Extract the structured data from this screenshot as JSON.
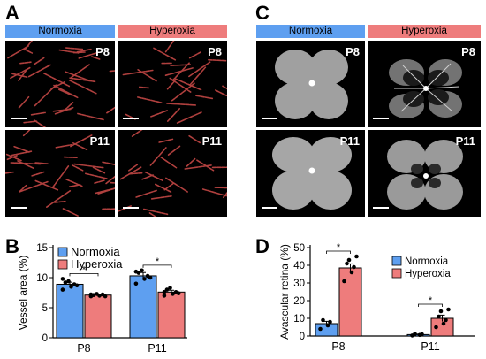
{
  "panels": {
    "A": {
      "label": "A",
      "normoxia": "Normoxia",
      "hyperoxia": "Hyperoxia",
      "ages": [
        "P8",
        "P8",
        "P11",
        "P11"
      ]
    },
    "C": {
      "label": "C",
      "normoxia": "Normoxia",
      "hyperoxia": "Hyperoxia",
      "ages": [
        "P8",
        "P8",
        "P11",
        "P11"
      ]
    },
    "B": {
      "label": "B",
      "ylabel": "Vessel area (%)",
      "categories": [
        "P8",
        "P11"
      ],
      "sig": [
        "*",
        "*"
      ]
    },
    "D": {
      "label": "D",
      "ylabel": "Avascular retina (%)",
      "categories": [
        "P8",
        "P11"
      ],
      "sig": [
        "*",
        "*"
      ]
    }
  },
  "colors": {
    "normoxia": "#5e9ff0",
    "hyperoxia": "#ee7c7c",
    "vessel": "#b0403e"
  },
  "chart_data": [
    {
      "type": "bar",
      "ylabel": "Vessel area (%)",
      "categories": [
        "P8",
        "P11"
      ],
      "ylim": [
        0,
        15
      ],
      "yticks": [
        0,
        5,
        10,
        15
      ],
      "legend": "top-left",
      "series": [
        {
          "name": "Normoxia",
          "values": [
            8.9,
            10.3
          ],
          "errors": [
            0.35,
            0.55
          ],
          "points": [
            [
              8.0,
              8.5,
              8.9,
              9.2,
              9.4,
              8.7,
              9.8
            ],
            [
              9.0,
              9.8,
              10.3,
              10.8,
              11.2,
              10.0,
              11.0
            ]
          ]
        },
        {
          "name": "Hyperoxia",
          "values": [
            7.1,
            7.6
          ],
          "errors": [
            0.15,
            0.3
          ],
          "points": [
            [
              6.9,
              7.0,
              7.2,
              7.1,
              7.3,
              6.9,
              7.2
            ],
            [
              7.0,
              7.3,
              7.6,
              8.0,
              8.3,
              7.4,
              7.6
            ]
          ]
        }
      ],
      "significance": [
        "*",
        "*"
      ]
    },
    {
      "type": "bar",
      "ylabel": "Avascular retina (%)",
      "categories": [
        "P8",
        "P11"
      ],
      "ylim": [
        0,
        50
      ],
      "yticks": [
        0,
        10,
        20,
        30,
        40,
        50
      ],
      "legend": "top-right",
      "series": [
        {
          "name": "Normoxia",
          "values": [
            7,
            0.8
          ],
          "errors": [
            1.3,
            0.3
          ],
          "points": [
            [
              4,
              6,
              8,
              9
            ],
            [
              0.3,
              0.6,
              1.0,
              1.2
            ]
          ]
        },
        {
          "name": "Hyperoxia",
          "values": [
            38.5,
            10
          ],
          "errors": [
            2.3,
            1.8
          ],
          "points": [
            [
              31,
              36,
              39,
              41,
              43,
              45
            ],
            [
              5,
              7,
              9,
              11,
              14,
              15
            ]
          ]
        }
      ],
      "significance": [
        "*",
        "*"
      ]
    }
  ]
}
